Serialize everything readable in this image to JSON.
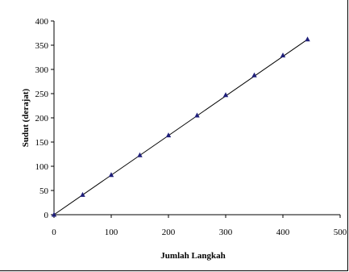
{
  "chart_data": {
    "type": "scatter",
    "title": "",
    "xlabel": "Jumlah Langkah",
    "ylabel": "Sudut (derajat)",
    "xlim": [
      0,
      500
    ],
    "ylim": [
      0,
      400
    ],
    "x_ticks": [
      0,
      100,
      200,
      300,
      400,
      500
    ],
    "y_ticks": [
      0,
      50,
      100,
      150,
      200,
      250,
      300,
      350,
      400
    ],
    "grid": false,
    "legend": "none",
    "marker": "triangle",
    "marker_color": "#1f1f7a",
    "line_color": "#000000",
    "series": [
      {
        "x": [
          0,
          50,
          100,
          150,
          200,
          250,
          300,
          350,
          400,
          443
        ],
        "y": [
          0,
          41,
          82,
          123,
          164,
          205,
          247,
          288,
          329,
          362
        ]
      }
    ],
    "trendline": {
      "x": [
        0,
        443
      ],
      "y": [
        0,
        362
      ]
    }
  }
}
